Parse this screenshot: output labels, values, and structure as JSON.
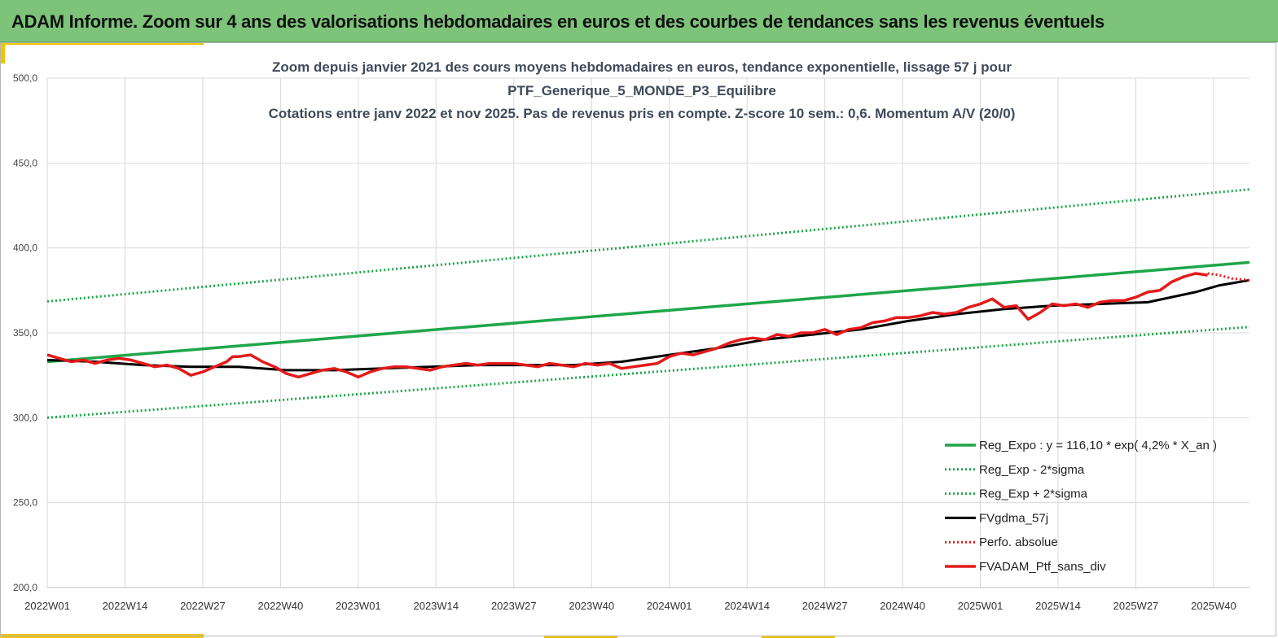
{
  "banner": {
    "title": "ADAM Informe. Zoom sur 4 ans des valorisations hebdomadaires en euros et des courbes de tendances sans les revenus éventuels"
  },
  "chart_data": {
    "type": "line",
    "title_lines": [
      "Zoom depuis janvier 2021 des cours moyens hebdomadaires  en euros, tendance exponentielle, lissage 57 j pour",
      "PTF_Generique_5_MONDE_P3_Equilibre",
      "Cotations  entre janv 2022 et nov 2025. Pas de revenus pris en compte. Z-score 10 sem.: 0,6. Momentum  A/V (20/0)"
    ],
    "ylim": [
      200,
      500
    ],
    "yticks": [
      200,
      250,
      300,
      350,
      400,
      450,
      500
    ],
    "ytick_labels": [
      "200,0",
      "250,0",
      "300,0",
      "350,0",
      "400,0",
      "450,0",
      "500,0"
    ],
    "xlim": [
      0,
      201
    ],
    "xticks": [
      0,
      13,
      26,
      39,
      52,
      65,
      78,
      91,
      104,
      117,
      130,
      143,
      156,
      169,
      182,
      195
    ],
    "xtick_labels": [
      "2022W01",
      "2022W14",
      "2022W27",
      "2022W40",
      "2023W01",
      "2023W14",
      "2023W27",
      "2023W40",
      "2024W01",
      "2024W14",
      "2024W27",
      "2024W40",
      "2025W01",
      "2025W14",
      "2025W27",
      "2025W40"
    ],
    "grid": true,
    "legend_position": "bottom-right",
    "series": [
      {
        "name": "Reg_Expo : y = 116,10 * exp( 4,2% *  X_an )",
        "style": "solid",
        "color": "#1fa64a",
        "width": 3.5,
        "x": [
          0,
          201
        ],
        "values": [
          333,
          391.5
        ]
      },
      {
        "name": "Reg_Exp - 2*sigma",
        "style": "dotted",
        "color": "#1fa64a",
        "width": 3,
        "x": [
          0,
          201
        ],
        "values": [
          300,
          353.5
        ]
      },
      {
        "name": "Reg_Exp + 2*sigma",
        "style": "dotted",
        "color": "#1fa64a",
        "width": 3,
        "x": [
          0,
          201
        ],
        "values": [
          368.5,
          434.5
        ]
      },
      {
        "name": "FVgdma_57j",
        "style": "solid",
        "color": "#000000",
        "width": 3,
        "x": [
          0,
          8,
          16,
          24,
          32,
          40,
          48,
          56,
          64,
          72,
          80,
          88,
          96,
          104,
          112,
          120,
          128,
          136,
          144,
          152,
          160,
          168,
          176,
          184,
          192,
          196,
          201
        ],
        "values": [
          334,
          333,
          331,
          330,
          330,
          328,
          328,
          329,
          330,
          331,
          331,
          331,
          333,
          337,
          341,
          346,
          349,
          352,
          357,
          361,
          364,
          366,
          367,
          368,
          374,
          378,
          381
        ]
      },
      {
        "name": "Perfo. absolue",
        "style": "dotted",
        "color": "#e41a1a",
        "width": 3,
        "x": [
          194,
          196,
          198,
          201
        ],
        "values": [
          385,
          384,
          382,
          381
        ]
      },
      {
        "name": "FVADAM_Ptf_sans_div",
        "style": "solid",
        "color": "#e41a1a",
        "width": 3.5,
        "x": [
          0,
          2,
          4,
          6,
          8,
          10,
          12,
          14,
          16,
          18,
          20,
          22,
          24,
          26,
          28,
          30,
          31,
          32,
          34,
          36,
          38,
          40,
          42,
          44,
          46,
          48,
          50,
          52,
          54,
          56,
          58,
          60,
          62,
          64,
          66,
          68,
          70,
          72,
          74,
          76,
          78,
          80,
          82,
          84,
          86,
          88,
          90,
          92,
          94,
          96,
          98,
          100,
          102,
          104,
          106,
          108,
          110,
          112,
          114,
          116,
          118,
          120,
          122,
          124,
          126,
          128,
          130,
          132,
          134,
          136,
          138,
          140,
          142,
          144,
          146,
          148,
          150,
          152,
          154,
          156,
          158,
          160,
          162,
          164,
          166,
          168,
          170,
          172,
          174,
          176,
          178,
          180,
          182,
          184,
          186,
          188,
          190,
          192,
          194
        ],
        "values": [
          337,
          335,
          333,
          334,
          332,
          334,
          335,
          334,
          332,
          330,
          331,
          329,
          325,
          327,
          330,
          333,
          336,
          336,
          337,
          333,
          330,
          326,
          324,
          326,
          328,
          329,
          327,
          324,
          327,
          329,
          330,
          330,
          329,
          328,
          330,
          331,
          332,
          331,
          332,
          332,
          332,
          331,
          330,
          332,
          331,
          330,
          332,
          331,
          332,
          329,
          330,
          331,
          332,
          336,
          338,
          337,
          339,
          341,
          344,
          346,
          347,
          346,
          349,
          348,
          350,
          350,
          352,
          349,
          352,
          353,
          356,
          357,
          359,
          359,
          360,
          362,
          361,
          362,
          365,
          367,
          370,
          365,
          366,
          358,
          362,
          367,
          366,
          367,
          365,
          368,
          369,
          369,
          371,
          374,
          375,
          380,
          383,
          385,
          384
        ]
      }
    ]
  }
}
